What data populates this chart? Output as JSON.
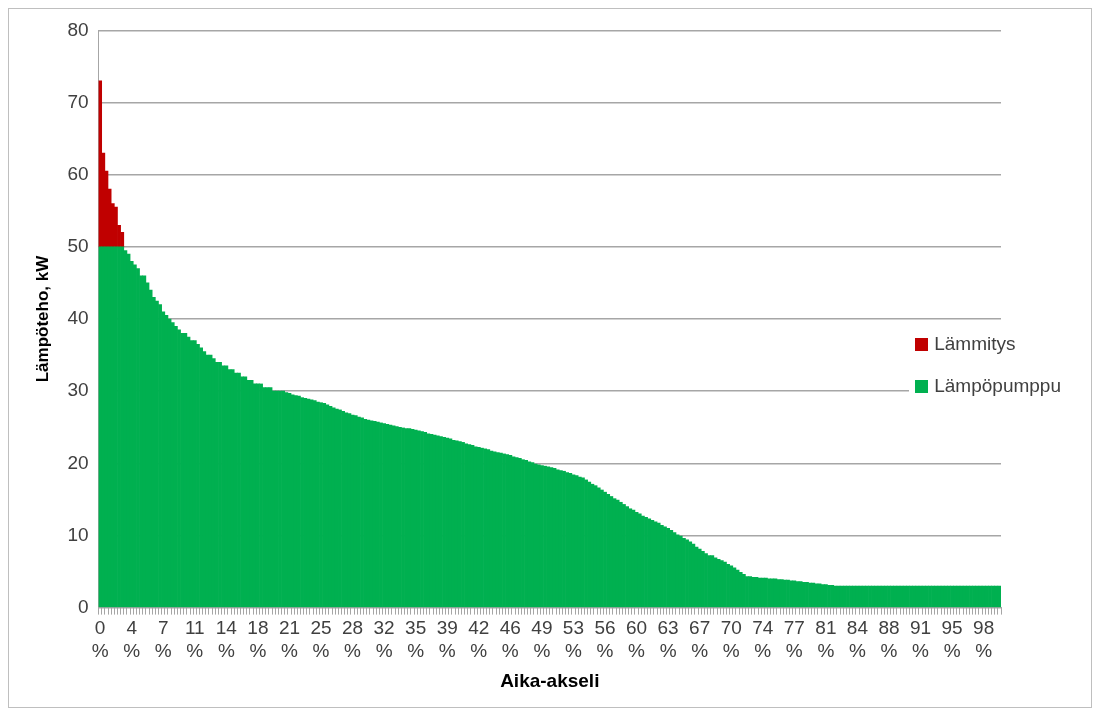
{
  "chart_data": {
    "type": "bar",
    "stacked": true,
    "xlabel": "Aika-akseli",
    "ylabel": "Lämpöteho, kW",
    "ylim": [
      0,
      80
    ],
    "yticks": [
      0,
      10,
      20,
      30,
      40,
      50,
      60,
      70,
      80
    ],
    "grid": "y",
    "legend": "right",
    "categories": [
      "0 %",
      null,
      null,
      null,
      null,
      null,
      null,
      null,
      null,
      null,
      "4 %",
      null,
      null,
      null,
      null,
      null,
      null,
      null,
      null,
      null,
      "7 %",
      null,
      null,
      null,
      null,
      null,
      null,
      null,
      null,
      null,
      "11 %",
      null,
      null,
      null,
      null,
      null,
      null,
      null,
      null,
      null,
      "14 %",
      null,
      null,
      null,
      null,
      null,
      null,
      null,
      null,
      null,
      "18 %",
      null,
      null,
      null,
      null,
      null,
      null,
      null,
      null,
      null,
      "21 %",
      null,
      null,
      null,
      null,
      null,
      null,
      null,
      null,
      null,
      "25 %",
      null,
      null,
      null,
      null,
      null,
      null,
      null,
      null,
      null,
      "28 %",
      null,
      null,
      null,
      null,
      null,
      null,
      null,
      null,
      null,
      "32 %",
      null,
      null,
      null,
      null,
      null,
      null,
      null,
      null,
      null,
      "35 %",
      null,
      null,
      null,
      null,
      null,
      null,
      null,
      null,
      null,
      "39 %",
      null,
      null,
      null,
      null,
      null,
      null,
      null,
      null,
      null,
      "42 %",
      null,
      null,
      null,
      null,
      null,
      null,
      null,
      null,
      null,
      "46 %",
      null,
      null,
      null,
      null,
      null,
      null,
      null,
      null,
      null,
      "49 %",
      null,
      null,
      null,
      null,
      null,
      null,
      null,
      null,
      null,
      "53 %",
      null,
      null,
      null,
      null,
      null,
      null,
      null,
      null,
      null,
      "56 %",
      null,
      null,
      null,
      null,
      null,
      null,
      null,
      null,
      null,
      "60 %",
      null,
      null,
      null,
      null,
      null,
      null,
      null,
      null,
      null,
      "63 %",
      null,
      null,
      null,
      null,
      null,
      null,
      null,
      null,
      null,
      "67 %",
      null,
      null,
      null,
      null,
      null,
      null,
      null,
      null,
      null,
      "70 %",
      null,
      null,
      null,
      null,
      null,
      null,
      null,
      null,
      null,
      "74 %",
      null,
      null,
      null,
      null,
      null,
      null,
      null,
      null,
      null,
      "77 %",
      null,
      null,
      null,
      null,
      null,
      null,
      null,
      null,
      null,
      "81 %",
      null,
      null,
      null,
      null,
      null,
      null,
      null,
      null,
      null,
      "84 %",
      null,
      null,
      null,
      null,
      null,
      null,
      null,
      null,
      null,
      "88 %",
      null,
      null,
      null,
      null,
      null,
      null,
      null,
      null,
      null,
      "91 %",
      null,
      null,
      null,
      null,
      null,
      null,
      null,
      null,
      null,
      "95 %",
      null,
      null,
      null,
      null,
      null,
      null,
      null,
      null,
      null,
      "98 %",
      null,
      null,
      null,
      null,
      null
    ],
    "series": [
      {
        "name": "Lämpöpumppu",
        "color": "#00b050",
        "values": [
          50,
          50,
          50,
          50,
          50,
          50,
          50,
          50,
          49.5,
          49,
          48,
          47.5,
          47,
          46,
          46,
          45,
          44,
          43,
          42.5,
          42,
          41,
          40.5,
          40,
          39.5,
          39,
          38.5,
          38,
          38,
          37.5,
          37,
          37,
          36.5,
          36,
          35.5,
          35,
          35,
          34.5,
          34,
          34,
          33.5,
          33.5,
          33,
          33,
          32.5,
          32.5,
          32,
          32,
          31.5,
          31.5,
          31,
          31,
          31,
          30.5,
          30.5,
          30.5,
          30,
          30,
          30,
          30,
          29.8,
          29.7,
          29.5,
          29.4,
          29.3,
          29.1,
          29,
          28.9,
          28.8,
          28.7,
          28.5,
          28.4,
          28.3,
          28.1,
          27.9,
          27.7,
          27.5,
          27.4,
          27.2,
          27,
          26.9,
          26.7,
          26.6,
          26.4,
          26.3,
          26.1,
          26,
          25.9,
          25.8,
          25.7,
          25.6,
          25.5,
          25.4,
          25.3,
          25.2,
          25.1,
          25,
          24.9,
          24.8,
          24.8,
          24.7,
          24.6,
          24.5,
          24.4,
          24.3,
          24.1,
          24,
          23.9,
          23.8,
          23.7,
          23.6,
          23.5,
          23.4,
          23.2,
          23.1,
          23,
          22.9,
          22.7,
          22.6,
          22.5,
          22.3,
          22.2,
          22.1,
          22,
          21.9,
          21.7,
          21.6,
          21.5,
          21.4,
          21.3,
          21.2,
          21.1,
          20.9,
          20.8,
          20.7,
          20.5,
          20.4,
          20.2,
          20.1,
          19.9,
          19.8,
          19.7,
          19.6,
          19.5,
          19.4,
          19.3,
          19.1,
          19,
          18.9,
          18.7,
          18.6,
          18.4,
          18.3,
          18.1,
          18,
          17.7,
          17.4,
          17.1,
          16.9,
          16.6,
          16.3,
          16,
          15.7,
          15.4,
          15.1,
          14.9,
          14.6,
          14.3,
          14,
          13.7,
          13.5,
          13.2,
          13,
          12.7,
          12.5,
          12.3,
          12.1,
          11.9,
          11.7,
          11.4,
          11.2,
          11,
          10.7,
          10.4,
          10.1,
          9.9,
          9.6,
          9.4,
          9.1,
          8.8,
          8.4,
          8.1,
          7.8,
          7.5,
          7.2,
          7.2,
          6.9,
          6.7,
          6.5,
          6.3,
          6,
          5.8,
          5.5,
          5.2,
          4.9,
          4.6,
          4.3,
          4.3,
          4.2,
          4.2,
          4.1,
          4.1,
          4.1,
          4,
          4,
          4,
          3.9,
          3.9,
          3.8,
          3.8,
          3.7,
          3.7,
          3.6,
          3.6,
          3.5,
          3.5,
          3.4,
          3.4,
          3.3,
          3.3,
          3.2,
          3.2,
          3.1,
          3.1,
          3,
          3,
          3,
          3,
          3,
          3,
          3,
          3,
          3,
          3,
          3,
          3,
          3,
          3,
          3,
          3,
          3,
          3,
          3,
          3,
          3,
          3,
          3,
          3,
          3,
          3,
          3,
          3,
          3,
          3,
          3,
          3,
          3,
          3,
          3,
          3,
          3,
          3,
          3,
          3,
          3,
          3,
          3,
          3,
          3,
          3,
          3,
          3,
          3,
          3,
          3,
          3,
          3
        ]
      },
      {
        "name": "Lämmitys",
        "color": "#c00000",
        "values": [
          23,
          13,
          10.5,
          8,
          6,
          5.5,
          3,
          2,
          null,
          null,
          null,
          null,
          null,
          null,
          null,
          null,
          null,
          null,
          null,
          null,
          null,
          null,
          null,
          null,
          null,
          null,
          null,
          null,
          null,
          null,
          null,
          null,
          null,
          null,
          null,
          null,
          null,
          null,
          null,
          null,
          null,
          null,
          null,
          null,
          null,
          null,
          null,
          null,
          null,
          null,
          null,
          null,
          null,
          null,
          null,
          null,
          null,
          null,
          null,
          null,
          null,
          null,
          null,
          null,
          null,
          null,
          null,
          null,
          null,
          null,
          null,
          null,
          null,
          null,
          null,
          null,
          null,
          null,
          null,
          null,
          null,
          null,
          null,
          null,
          null,
          null,
          null,
          null,
          null,
          null,
          null,
          null,
          null,
          null,
          null,
          null,
          null,
          null,
          null,
          null,
          null,
          null,
          null,
          null,
          null,
          null,
          null,
          null,
          null,
          null,
          null,
          null,
          null,
          null,
          null,
          null,
          null,
          null,
          null,
          null,
          null,
          null,
          null,
          null,
          null,
          null,
          null,
          null,
          null,
          null,
          null,
          null,
          null,
          null,
          null,
          null,
          null,
          null,
          null,
          null,
          null,
          null,
          null,
          null,
          null,
          null,
          null,
          null,
          null,
          null,
          null,
          null,
          null,
          null,
          null,
          null,
          null,
          null,
          null,
          null,
          null,
          null,
          null,
          null,
          null,
          null,
          null,
          null,
          null,
          null,
          null,
          null,
          null,
          null,
          null,
          null,
          null,
          null,
          null,
          null,
          null,
          null,
          null,
          null,
          null,
          null,
          null,
          null,
          null,
          null,
          null,
          null,
          null,
          null,
          null,
          null,
          null,
          null,
          null,
          null,
          null,
          null,
          null,
          null,
          null,
          null,
          null,
          null,
          null,
          null,
          null,
          null,
          null,
          null,
          null,
          null,
          null,
          null,
          null,
          null,
          null,
          null,
          null,
          null,
          null,
          null,
          null,
          null,
          null,
          null,
          null,
          null,
          null,
          null,
          null,
          null,
          null,
          null,
          null,
          null,
          null,
          null,
          null,
          null,
          null,
          null,
          null,
          null,
          null,
          null,
          null,
          null,
          null,
          null,
          null,
          null,
          null,
          null,
          null,
          null,
          null,
          null,
          null,
          null,
          null,
          null,
          null,
          null,
          null,
          null,
          null,
          null,
          null,
          null,
          null,
          null,
          null,
          null,
          null,
          null,
          null,
          null,
          null,
          null,
          null,
          null
        ]
      }
    ]
  }
}
